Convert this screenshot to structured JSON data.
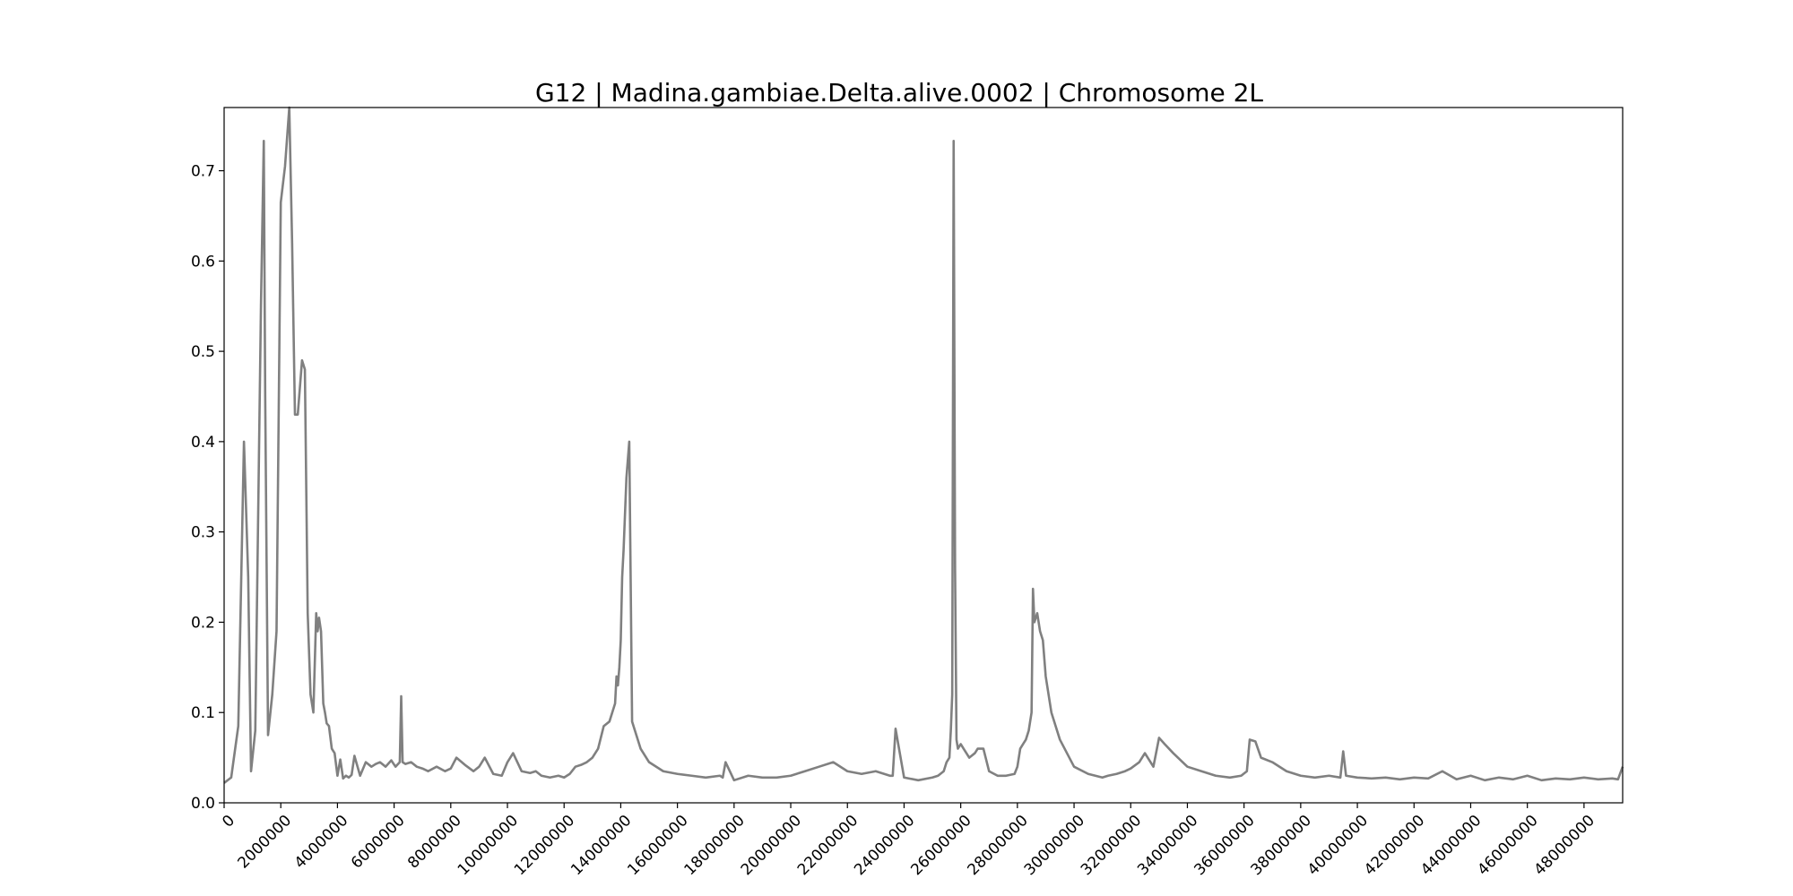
{
  "chart_data": {
    "type": "line",
    "title": "G12 | Madina.gambiae.Delta.alive.0002 | Chromosome 2L",
    "xlabel": "",
    "ylabel": "",
    "xlim": [
      0,
      49364325
    ],
    "ylim": [
      0,
      0.77
    ],
    "grid": false,
    "legend": "none",
    "line_color": "#808080",
    "x_ticks": [
      {
        "value": 0,
        "label": "0"
      },
      {
        "value": 2000000,
        "label": "2000000"
      },
      {
        "value": 4000000,
        "label": "4000000"
      },
      {
        "value": 6000000,
        "label": "6000000"
      },
      {
        "value": 8000000,
        "label": "8000000"
      },
      {
        "value": 10000000,
        "label": "10000000"
      },
      {
        "value": 12000000,
        "label": "12000000"
      },
      {
        "value": 14000000,
        "label": "14000000"
      },
      {
        "value": 16000000,
        "label": "16000000"
      },
      {
        "value": 18000000,
        "label": "18000000"
      },
      {
        "value": 20000000,
        "label": "20000000"
      },
      {
        "value": 22000000,
        "label": "22000000"
      },
      {
        "value": 24000000,
        "label": "24000000"
      },
      {
        "value": 26000000,
        "label": "26000000"
      },
      {
        "value": 28000000,
        "label": "28000000"
      },
      {
        "value": 30000000,
        "label": "30000000"
      },
      {
        "value": 32000000,
        "label": "32000000"
      },
      {
        "value": 34000000,
        "label": "34000000"
      },
      {
        "value": 36000000,
        "label": "36000000"
      },
      {
        "value": 38000000,
        "label": "38000000"
      },
      {
        "value": 40000000,
        "label": "40000000"
      },
      {
        "value": 42000000,
        "label": "42000000"
      },
      {
        "value": 44000000,
        "label": "44000000"
      },
      {
        "value": 46000000,
        "label": "46000000"
      },
      {
        "value": 48000000,
        "label": "48000000"
      }
    ],
    "y_ticks": [
      {
        "value": 0.0,
        "label": "0.0"
      },
      {
        "value": 0.1,
        "label": "0.1"
      },
      {
        "value": 0.2,
        "label": "0.2"
      },
      {
        "value": 0.3,
        "label": "0.3"
      },
      {
        "value": 0.4,
        "label": "0.4"
      },
      {
        "value": 0.5,
        "label": "0.5"
      },
      {
        "value": 0.6,
        "label": "0.6"
      },
      {
        "value": 0.7,
        "label": "0.7"
      }
    ],
    "series": [
      {
        "x": [
          0,
          250000,
          500000,
          700000,
          850000,
          950000,
          1100000,
          1300000,
          1400000,
          1450000,
          1550000,
          1700000,
          1850000,
          2000000,
          2150000,
          2300000,
          2400000,
          2500000,
          2600000,
          2750000,
          2850000,
          2950000,
          3050000,
          3150000,
          3250000,
          3300000,
          3350000,
          3420000,
          3500000,
          3560000,
          3620000,
          3700000,
          3800000,
          3900000,
          4000000,
          4100000,
          4200000,
          4300000,
          4400000,
          4500000,
          4600000,
          4800000,
          5000000,
          5200000,
          5350000,
          5500000,
          5700000,
          5900000,
          6050000,
          6200000,
          6250000,
          6300000,
          6400000,
          6600000,
          6800000,
          7000000,
          7200000,
          7500000,
          7800000,
          8000000,
          8200000,
          8500000,
          8800000,
          9000000,
          9200000,
          9500000,
          9800000,
          10000000,
          10200000,
          10500000,
          10800000,
          11000000,
          11200000,
          11500000,
          11800000,
          12000000,
          12200000,
          12400000,
          12600000,
          12800000,
          13000000,
          13200000,
          13400000,
          13600000,
          13700000,
          13800000,
          13850000,
          13900000,
          13950000,
          14000000,
          14050000,
          14100000,
          14200000,
          14300000,
          14400000,
          14500000,
          14700000,
          15000000,
          15500000,
          16000000,
          16500000,
          17000000,
          17500000,
          17600000,
          17700000,
          18000000,
          18500000,
          19000000,
          19500000,
          20000000,
          20500000,
          21000000,
          21500000,
          22000000,
          22500000,
          23000000,
          23500000,
          23600000,
          23700000,
          24000000,
          24500000,
          25000000,
          25200000,
          25400000,
          25500000,
          25600000,
          25650000,
          25700000,
          25750000,
          25800000,
          25850000,
          25900000,
          26000000,
          26100000,
          26300000,
          26500000,
          26600000,
          26800000,
          27000000,
          27300000,
          27600000,
          27900000,
          28000000,
          28100000,
          28200000,
          28300000,
          28400000,
          28500000,
          28550000,
          28600000,
          28700000,
          28800000,
          28900000,
          29000000,
          29200000,
          29500000,
          30000000,
          30500000,
          31000000,
          31200000,
          31500000,
          31800000,
          32000000,
          32300000,
          32500000,
          32800000,
          33000000,
          33200000,
          33500000,
          34000000,
          34500000,
          35000000,
          35500000,
          35900000,
          36100000,
          36200000,
          36400000,
          36600000,
          37000000,
          37500000,
          38000000,
          38500000,
          39000000,
          39400000,
          39500000,
          39600000,
          40000000,
          40500000,
          41000000,
          41500000,
          42000000,
          42500000,
          43000000,
          43500000,
          44000000,
          44500000,
          45000000,
          45500000,
          46000000,
          46500000,
          47000000,
          47500000,
          48000000,
          48500000,
          49000000,
          49200000,
          49364325
        ],
        "y": [
          0.022,
          0.028,
          0.085,
          0.4,
          0.25,
          0.035,
          0.08,
          0.55,
          0.733,
          0.45,
          0.075,
          0.12,
          0.19,
          0.665,
          0.705,
          0.77,
          0.62,
          0.43,
          0.43,
          0.49,
          0.48,
          0.21,
          0.12,
          0.1,
          0.21,
          0.19,
          0.205,
          0.19,
          0.11,
          0.1,
          0.088,
          0.085,
          0.06,
          0.055,
          0.03,
          0.048,
          0.027,
          0.03,
          0.028,
          0.031,
          0.052,
          0.03,
          0.045,
          0.04,
          0.043,
          0.045,
          0.04,
          0.047,
          0.04,
          0.045,
          0.118,
          0.045,
          0.043,
          0.045,
          0.04,
          0.038,
          0.035,
          0.04,
          0.035,
          0.038,
          0.05,
          0.042,
          0.035,
          0.04,
          0.05,
          0.032,
          0.03,
          0.045,
          0.055,
          0.035,
          0.033,
          0.035,
          0.03,
          0.028,
          0.03,
          0.028,
          0.032,
          0.04,
          0.042,
          0.045,
          0.05,
          0.06,
          0.085,
          0.09,
          0.1,
          0.11,
          0.14,
          0.13,
          0.15,
          0.18,
          0.25,
          0.28,
          0.36,
          0.4,
          0.09,
          0.08,
          0.06,
          0.045,
          0.035,
          0.032,
          0.03,
          0.028,
          0.03,
          0.028,
          0.045,
          0.025,
          0.03,
          0.028,
          0.028,
          0.03,
          0.035,
          0.04,
          0.045,
          0.035,
          0.032,
          0.035,
          0.03,
          0.03,
          0.082,
          0.028,
          0.025,
          0.028,
          0.03,
          0.035,
          0.045,
          0.05,
          0.08,
          0.12,
          0.733,
          0.26,
          0.07,
          0.06,
          0.065,
          0.06,
          0.05,
          0.055,
          0.06,
          0.06,
          0.035,
          0.03,
          0.03,
          0.032,
          0.04,
          0.06,
          0.065,
          0.07,
          0.08,
          0.1,
          0.237,
          0.2,
          0.21,
          0.19,
          0.18,
          0.14,
          0.1,
          0.07,
          0.04,
          0.032,
          0.028,
          0.03,
          0.032,
          0.035,
          0.038,
          0.045,
          0.055,
          0.04,
          0.072,
          0.065,
          0.055,
          0.04,
          0.035,
          0.03,
          0.028,
          0.03,
          0.035,
          0.07,
          0.068,
          0.05,
          0.045,
          0.035,
          0.03,
          0.028,
          0.03,
          0.028,
          0.057,
          0.03,
          0.028,
          0.027,
          0.028,
          0.026,
          0.028,
          0.027,
          0.035,
          0.026,
          0.03,
          0.025,
          0.028,
          0.026,
          0.03,
          0.025,
          0.027,
          0.026,
          0.028,
          0.026,
          0.027,
          0.026,
          0.04
        ]
      }
    ]
  }
}
